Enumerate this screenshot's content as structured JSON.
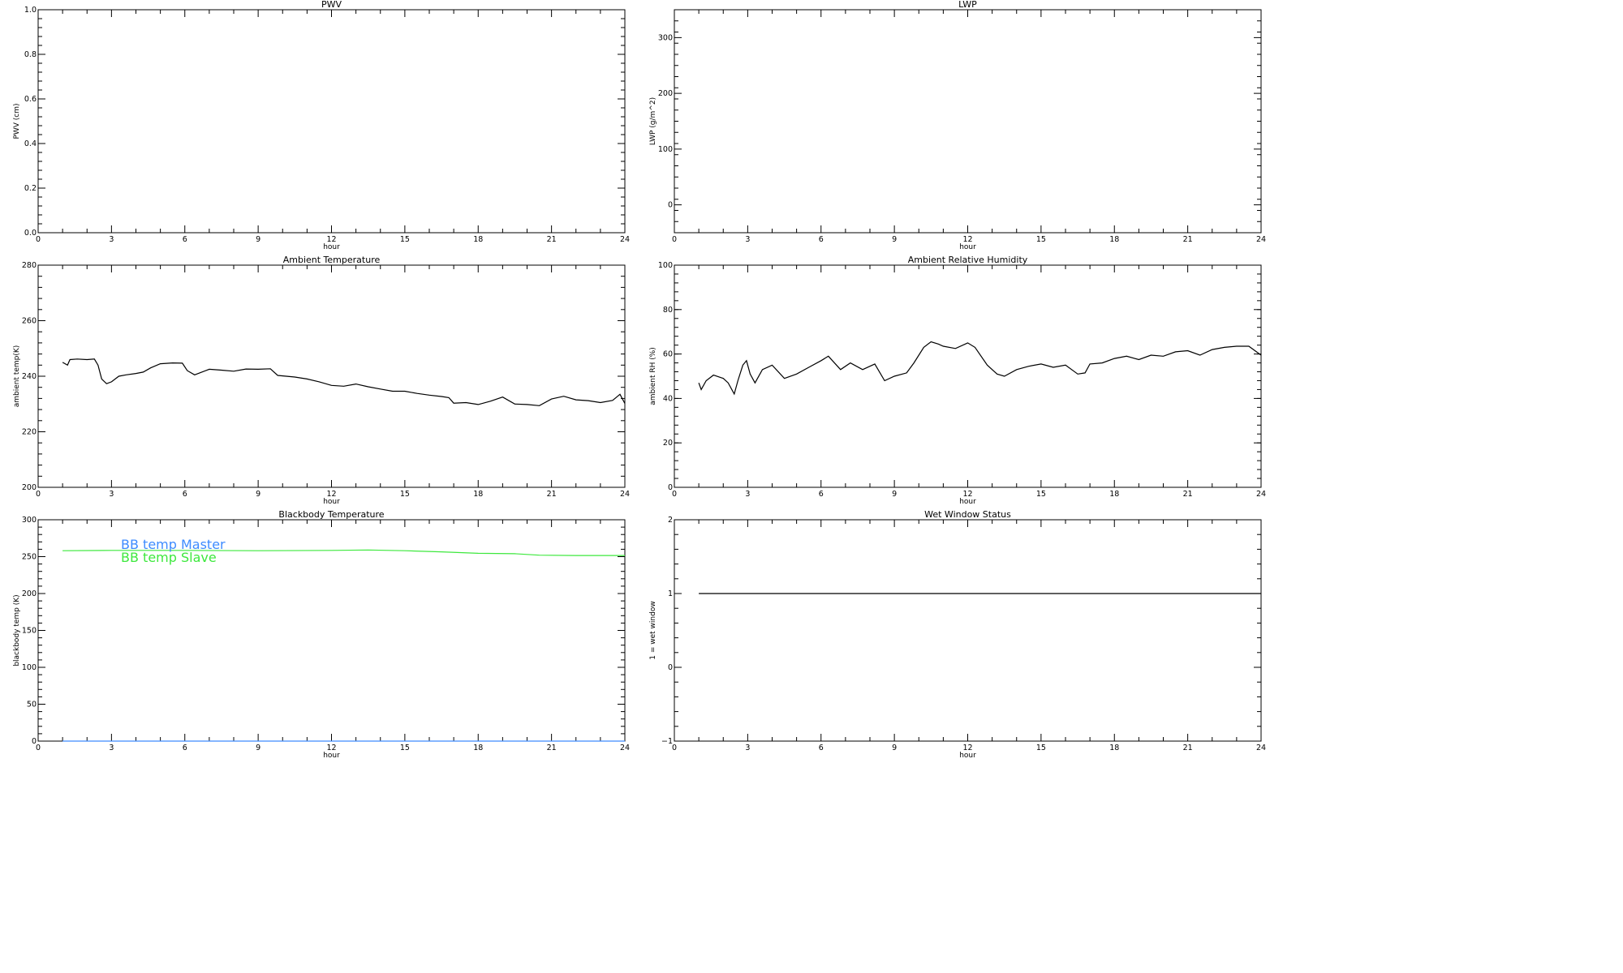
{
  "chart_data": [
    {
      "id": "pwv",
      "type": "line",
      "title": "PWV",
      "xlabel": "hour",
      "ylabel": "PWV (cm)",
      "xlim": [
        0,
        24
      ],
      "ylim": [
        0,
        1
      ],
      "xticks": [
        0,
        3,
        6,
        9,
        12,
        15,
        18,
        21,
        24
      ],
      "yticks": [
        0,
        0.2,
        0.4,
        0.6,
        0.8,
        1.0
      ],
      "ytick_labels": [
        "0.0",
        "0.2",
        "0.4",
        "0.6",
        "0.8",
        "1.0"
      ],
      "series": []
    },
    {
      "id": "lwp",
      "type": "line",
      "title": "LWP",
      "xlabel": "hour",
      "ylabel": "LWP (g/m^2)",
      "xlim": [
        0,
        24
      ],
      "ylim": [
        -50,
        350
      ],
      "xticks": [
        0,
        3,
        6,
        9,
        12,
        15,
        18,
        21,
        24
      ],
      "yticks": [
        0,
        100,
        200,
        300
      ],
      "ytick_labels": [
        "0",
        "100",
        "200",
        "300"
      ],
      "series": []
    },
    {
      "id": "ambient-temperature",
      "type": "line",
      "title": "Ambient Temperature",
      "xlabel": "hour",
      "ylabel": "ambient temp(K)",
      "xlim": [
        0,
        24
      ],
      "ylim": [
        200,
        280
      ],
      "xticks": [
        0,
        3,
        6,
        9,
        12,
        15,
        18,
        21,
        24
      ],
      "yticks": [
        200,
        220,
        240,
        260,
        280
      ],
      "ytick_labels": [
        "200",
        "220",
        "240",
        "260",
        "280"
      ],
      "series": [
        {
          "color": "#000000",
          "x": [
            1.0,
            1.2,
            1.3,
            1.6,
            2.0,
            2.3,
            2.45,
            2.6,
            2.8,
            3.0,
            3.3,
            3.6,
            4.0,
            4.3,
            4.6,
            5.0,
            5.5,
            5.9,
            6.1,
            6.4,
            7.0,
            7.5,
            8.0,
            8.5,
            9.0,
            9.5,
            9.8,
            10.5,
            11.0,
            11.5,
            12.0,
            12.5,
            13.0,
            13.5,
            14.0,
            14.5,
            15.0,
            15.5,
            16.0,
            16.5,
            16.8,
            17.0,
            17.5,
            18.0,
            18.5,
            19.0,
            19.5,
            20.0,
            20.5,
            21.0,
            21.5,
            22.0,
            22.5,
            23.0,
            23.5,
            23.8,
            24.0
          ],
          "y": [
            245,
            244,
            246,
            246.2,
            246,
            246.2,
            244,
            239,
            237.3,
            238,
            240,
            240.5,
            241,
            241.5,
            243,
            244.5,
            244.8,
            244.7,
            242,
            240.5,
            242.5,
            242.2,
            241.8,
            242.6,
            242.5,
            242.7,
            240.3,
            239.7,
            239,
            238,
            236.7,
            236.4,
            237.2,
            236.2,
            235.4,
            234.6,
            234.6,
            233.8,
            233.2,
            232.7,
            232.3,
            230.3,
            230.5,
            229.8,
            231,
            232.5,
            230,
            229.8,
            229.4,
            231.8,
            232.8,
            231.5,
            231.2,
            230.5,
            231.3,
            233.5,
            230.2
          ]
        }
      ]
    },
    {
      "id": "ambient-relative-humidity",
      "type": "line",
      "title": "Ambient Relative Humidity",
      "xlabel": "hour",
      "ylabel": "ambient RH (%)",
      "xlim": [
        0,
        24
      ],
      "ylim": [
        0,
        100
      ],
      "xticks": [
        0,
        3,
        6,
        9,
        12,
        15,
        18,
        21,
        24
      ],
      "yticks": [
        0,
        20,
        40,
        60,
        80,
        100
      ],
      "ytick_labels": [
        "0",
        "20",
        "40",
        "60",
        "80",
        "100"
      ],
      "series": [
        {
          "color": "#000000",
          "x": [
            1.0,
            1.1,
            1.3,
            1.6,
            2.0,
            2.2,
            2.45,
            2.6,
            2.8,
            2.95,
            3.1,
            3.3,
            3.6,
            4.0,
            4.5,
            5.0,
            5.5,
            6.0,
            6.3,
            6.8,
            7.2,
            7.7,
            8.2,
            8.6,
            9.0,
            9.5,
            9.8,
            10.2,
            10.5,
            10.8,
            11.0,
            11.5,
            12.0,
            12.3,
            12.8,
            13.2,
            13.5,
            14.0,
            14.5,
            15.0,
            15.5,
            16.0,
            16.5,
            16.8,
            17.0,
            17.5,
            18.0,
            18.5,
            19.0,
            19.5,
            20.0,
            20.5,
            21.0,
            21.5,
            22.0,
            22.5,
            23.0,
            23.5,
            24.0
          ],
          "y": [
            47,
            44,
            48,
            50.5,
            49,
            47,
            42,
            48,
            55,
            57,
            51,
            47,
            53,
            55,
            49,
            51,
            54,
            57,
            59,
            53,
            56,
            53,
            55.5,
            48,
            50,
            51.5,
            56,
            63,
            65.5,
            64.5,
            63.5,
            62.5,
            65,
            63,
            55,
            51,
            50,
            53,
            54.5,
            55.5,
            54,
            55,
            51,
            51.5,
            55.5,
            56,
            58,
            59,
            57.5,
            59.5,
            59,
            61,
            61.5,
            59.5,
            62,
            63,
            63.5,
            63.5,
            59.5
          ]
        }
      ]
    },
    {
      "id": "blackbody-temperature",
      "type": "line",
      "title": "Blackbody Temperature",
      "xlabel": "hour",
      "ylabel": "blackbody temp (K)",
      "xlim": [
        0,
        24
      ],
      "ylim": [
        0,
        300
      ],
      "xticks": [
        0,
        3,
        6,
        9,
        12,
        15,
        18,
        21,
        24
      ],
      "yticks": [
        0,
        50,
        100,
        150,
        200,
        250,
        300
      ],
      "ytick_labels": [
        "0",
        "50",
        "100",
        "150",
        "200",
        "250",
        "300"
      ],
      "legend": [
        "BB temp Master",
        "BB temp Slave"
      ],
      "series": [
        {
          "name": "BB temp Master",
          "color": "#3d8bff",
          "x": [
            1.0,
            4.0,
            8.0,
            12.0,
            16.0,
            20.0,
            24.0
          ],
          "y": [
            0,
            0,
            0,
            0,
            0,
            0,
            0
          ]
        },
        {
          "name": "BB temp Slave",
          "color": "#3de83d",
          "x": [
            1.0,
            3.0,
            6.0,
            9.0,
            12.0,
            13.5,
            15.0,
            16.5,
            18.0,
            19.5,
            20.5,
            22.0,
            24.0
          ],
          "y": [
            258,
            258.5,
            258.5,
            258,
            258.5,
            259,
            258,
            256.5,
            254.5,
            254,
            252,
            251.5,
            251.5
          ]
        }
      ]
    },
    {
      "id": "wet-window-status",
      "type": "line",
      "title": "Wet Window Status",
      "xlabel": "hour",
      "ylabel": "1 = wet window",
      "xlim": [
        0,
        24
      ],
      "ylim": [
        -1,
        2
      ],
      "xticks": [
        0,
        3,
        6,
        9,
        12,
        15,
        18,
        21,
        24
      ],
      "yticks": [
        -1,
        0,
        1,
        2
      ],
      "ytick_labels": [
        "−1",
        "0",
        "1",
        "2"
      ],
      "series": [
        {
          "color": "#000000",
          "x": [
            1.0,
            24.0
          ],
          "y": [
            1,
            1
          ]
        }
      ]
    }
  ]
}
